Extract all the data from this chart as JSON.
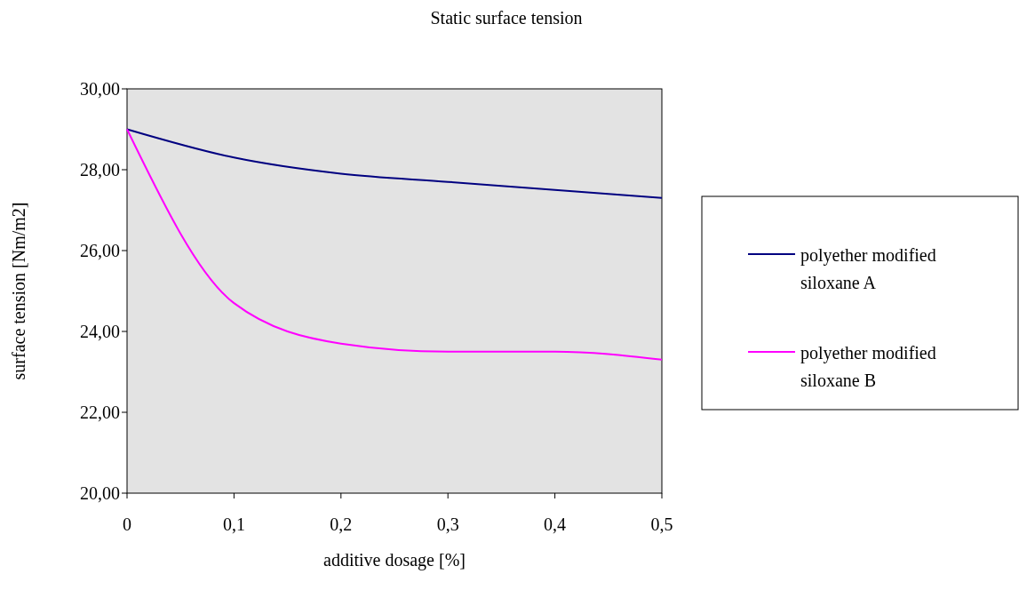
{
  "chart_data": {
    "type": "line",
    "title": "Static surface tension",
    "xlabel": "additive dosage [%]",
    "ylabel": "surface tension [Nm/m2]",
    "x": [
      0,
      0.1,
      0.2,
      0.3,
      0.4,
      0.5
    ],
    "series": [
      {
        "name": "polyether modified siloxane A",
        "color": "#000080",
        "values": [
          29,
          28.3,
          27.9,
          27.7,
          27.5,
          27.3
        ]
      },
      {
        "name": "polyether modified siloxane B",
        "color": "#ff00ff",
        "values": [
          29,
          24.7,
          23.7,
          23.5,
          23.5,
          23.3
        ]
      }
    ],
    "xlim": [
      0,
      0.5
    ],
    "xticks": [
      0,
      {
        "value": 0.1,
        "label": "0,1"
      },
      {
        "value": 0.2,
        "label": "0,2"
      },
      {
        "value": 0.3,
        "label": "0,3"
      },
      {
        "value": 0.4,
        "label": "0,4"
      },
      {
        "value": 0.5,
        "label": "0,5"
      }
    ],
    "ylim": [
      20,
      30
    ],
    "yticks": [
      {
        "value": 20,
        "label": "20,00"
      },
      {
        "value": 22,
        "label": "22,00"
      },
      {
        "value": 24,
        "label": "24,00"
      },
      {
        "value": 26,
        "label": "26,00"
      },
      {
        "value": 28,
        "label": "28,00"
      },
      {
        "value": 30,
        "label": "30,00"
      }
    ],
    "grid": false,
    "legend": "right",
    "marker": "none",
    "line_style": "solid"
  }
}
